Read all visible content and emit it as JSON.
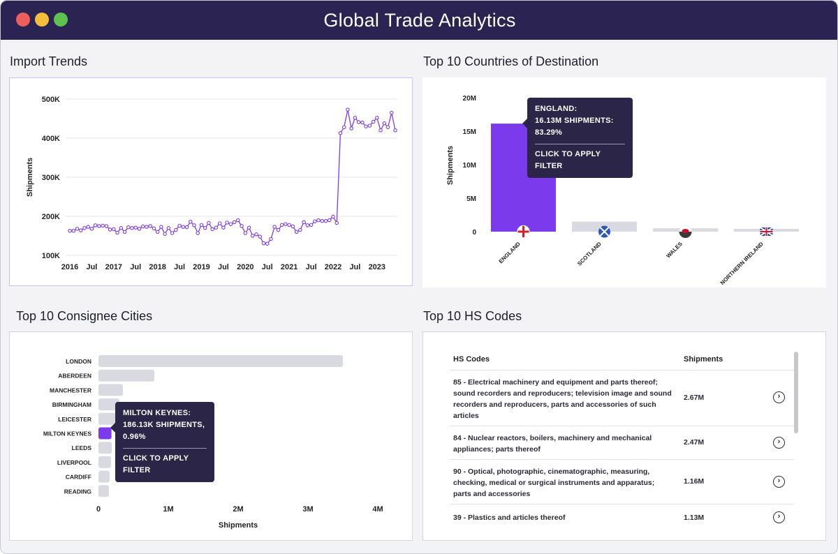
{
  "app": {
    "title": "Global Trade Analytics"
  },
  "import_trends": {
    "title": "Import Trends",
    "chart_data": {
      "type": "line",
      "title": "Import Trends",
      "ylabel": "Shipments",
      "ylim": [
        100000,
        500000
      ],
      "y_ticks": [
        "100K",
        "200K",
        "300K",
        "400K",
        "500K"
      ],
      "x_ticks": [
        "2016",
        "Jul",
        "2017",
        "Jul",
        "2018",
        "Jul",
        "2019",
        "Jul",
        "2020",
        "Jul",
        "2021",
        "Jul",
        "2022",
        "Jul",
        "2023"
      ],
      "x_start": "2016-01",
      "values": [
        163000,
        163000,
        168000,
        164000,
        170000,
        173000,
        168000,
        177000,
        175000,
        176000,
        175000,
        166000,
        167000,
        158000,
        170000,
        160000,
        172000,
        170000,
        171000,
        168000,
        174000,
        173000,
        175000,
        169000,
        160000,
        173000,
        155000,
        170000,
        157000,
        165000,
        176000,
        173000,
        172000,
        186000,
        177000,
        157000,
        178000,
        170000,
        183000,
        167000,
        171000,
        182000,
        171000,
        184000,
        180000,
        185000,
        190000,
        175000,
        157000,
        171000,
        150000,
        154000,
        148000,
        131000,
        130000,
        142000,
        173000,
        165000,
        178000,
        180000,
        178000,
        174000,
        160000,
        165000,
        185000,
        177000,
        178000,
        187000,
        190000,
        188000,
        188000,
        190000,
        199000,
        183000,
        413000,
        428000,
        473000,
        425000,
        452000,
        441000,
        440000,
        430000,
        432000,
        442000,
        452000,
        420000,
        438000,
        428000,
        465000,
        420000
      ]
    }
  },
  "destinations": {
    "title": "Top 10 Countries of Destination",
    "chart_data": {
      "type": "bar",
      "ylabel": "Shipments",
      "ylim": [
        0,
        20000000
      ],
      "y_ticks": [
        "0",
        "5M",
        "10M",
        "15M",
        "20M"
      ],
      "categories": [
        "ENGLAND",
        "SCOTLAND",
        "WALES",
        "NORTHERN IRELAND"
      ],
      "values": [
        16130000,
        1500000,
        500000,
        200000
      ],
      "highlight": "ENGLAND"
    },
    "tooltip": {
      "line1": "ENGLAND:",
      "line2": "16.13M SHIPMENTS:",
      "line3": "83.29%",
      "action": "CLICK TO APPLY FILTER"
    }
  },
  "cities": {
    "title": "Top 10 Consignee Cities",
    "chart_data": {
      "type": "bar",
      "orientation": "horizontal",
      "xlabel": "Shipments",
      "xlim": [
        0,
        4000000
      ],
      "x_ticks": [
        "0",
        "1M",
        "2M",
        "3M",
        "4M"
      ],
      "categories": [
        "LONDON",
        "ABERDEEN",
        "MANCHESTER",
        "BIRMINGHAM",
        "LEICESTER",
        "MILTON KEYNES",
        "LEEDS",
        "LIVERPOOL",
        "CARDIFF",
        "READING"
      ],
      "values": [
        3500000,
        800000,
        350000,
        300000,
        250000,
        186130,
        190000,
        180000,
        160000,
        150000
      ],
      "highlight": "MILTON KEYNES"
    },
    "tooltip": {
      "line1": "MILTON KEYNES:",
      "line2": "186.13K SHIPMENTS,",
      "line3": "0.96%",
      "action": "CLICK TO APPLY FILTER"
    }
  },
  "hs_codes": {
    "title": "Top 10 HS Codes",
    "columns": [
      "HS Codes",
      "Shipments"
    ],
    "rows": [
      {
        "desc": "85 - Electrical machinery and equipment and parts thereof; sound recorders and reproducers; television image and sound recorders and reproducers, parts and accessories of such articles",
        "value": "2.67M"
      },
      {
        "desc": "84 - Nuclear reactors, boilers, machinery and mechanical appliances; parts thereof",
        "value": "2.47M"
      },
      {
        "desc": "90 - Optical, photographic, cinematographic, measuring, checking, medical or surgical instruments and apparatus; parts and accessories",
        "value": "1.16M"
      },
      {
        "desc": "39 - Plastics and articles thereof",
        "value": "1.13M"
      }
    ]
  },
  "colors": {
    "accent": "#7c3aed",
    "bar_muted": "#d9d9e1",
    "header": "#2b2352",
    "tooltip": "#2b2647"
  },
  "icons": [
    "arrow-right-circle-icon",
    "england-flag-icon",
    "scotland-flag-icon",
    "wales-flag-icon",
    "uk-flag-icon"
  ]
}
